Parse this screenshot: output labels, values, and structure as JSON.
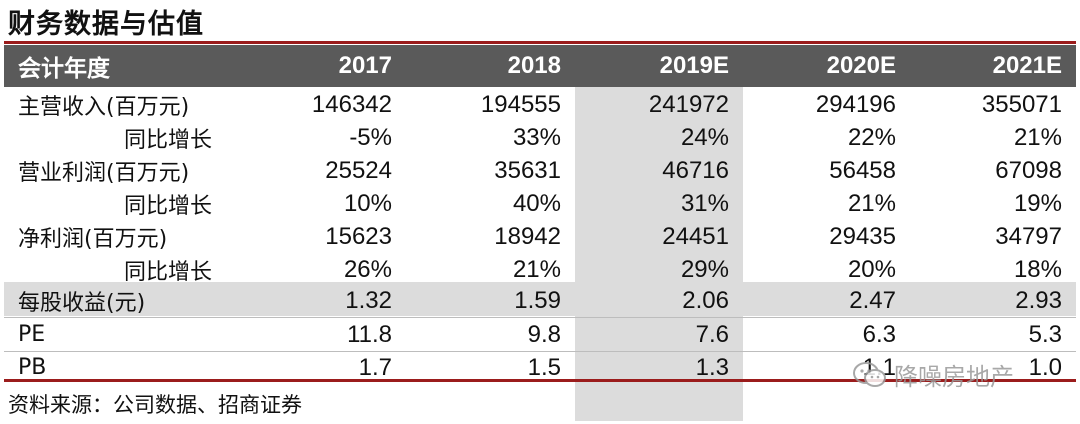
{
  "title": "财务数据与估值",
  "header": {
    "label": "会计年度",
    "years": [
      "2017",
      "2018",
      "2019E",
      "2020E",
      "2021E"
    ]
  },
  "rows": [
    {
      "label": "主营收入(百万元)",
      "indent": false,
      "values": [
        "146342",
        "194555",
        "241972",
        "294196",
        "355071"
      ]
    },
    {
      "label": "同比增长",
      "indent": true,
      "values": [
        "-5%",
        "33%",
        "24%",
        "22%",
        "21%"
      ]
    },
    {
      "label": "营业利润(百万元)",
      "indent": false,
      "values": [
        "25524",
        "35631",
        "46716",
        "56458",
        "67098"
      ]
    },
    {
      "label": "同比增长",
      "indent": true,
      "values": [
        "10%",
        "40%",
        "31%",
        "21%",
        "19%"
      ]
    },
    {
      "label": "净利润(百万元)",
      "indent": false,
      "values": [
        "15623",
        "18942",
        "24451",
        "29435",
        "34797"
      ]
    },
    {
      "label": "同比增长",
      "indent": true,
      "values": [
        "26%",
        "21%",
        "29%",
        "20%",
        "18%"
      ]
    },
    {
      "label": "每股收益(元)",
      "indent": false,
      "values": [
        "1.32",
        "1.59",
        "2.06",
        "2.47",
        "2.93"
      ]
    },
    {
      "label": "PE",
      "indent": false,
      "values": [
        "11.8",
        "9.8",
        "7.6",
        "6.3",
        "5.3"
      ]
    },
    {
      "label": "PB",
      "indent": false,
      "values": [
        "1.7",
        "1.5",
        "1.3",
        "1.1",
        "1.0"
      ]
    }
  ],
  "source": "资料来源：公司数据、招商证券",
  "watermark": "降噪房地产",
  "colors": {
    "accent": "#9b1c1c",
    "header_bg": "#5a5a5a",
    "shade": "#dcdcdc"
  }
}
